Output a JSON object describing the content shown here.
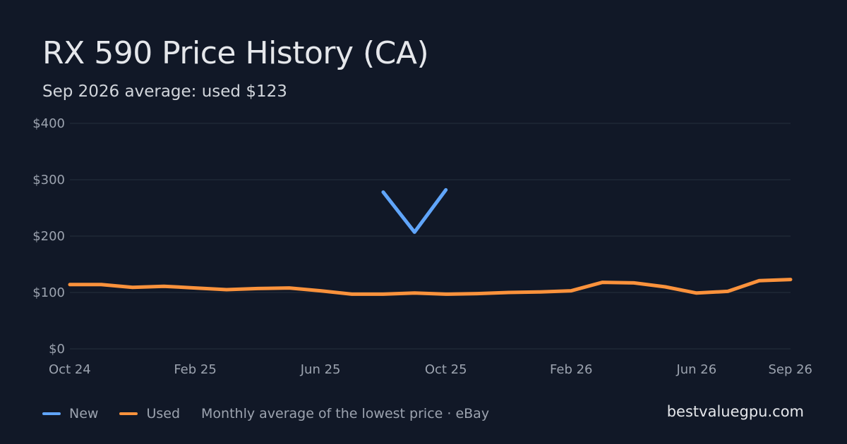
{
  "title": "RX 590 Price History (CA)",
  "subtitle": "Sep 2026 average: used $123",
  "legend": [
    {
      "label": "New",
      "color": "#60a5fa"
    },
    {
      "label": "Used",
      "color": "#fb923c"
    }
  ],
  "source_note": "Monthly average of the lowest price · eBay",
  "brand": "bestvaluegpu.com",
  "chart_data": {
    "type": "line",
    "x": [
      "Oct 24",
      "Nov 24",
      "Dec 24",
      "Jan 25",
      "Feb 25",
      "Mar 25",
      "Apr 25",
      "May 25",
      "Jun 25",
      "Jul 25",
      "Aug 25",
      "Sep 25",
      "Oct 25",
      "Nov 25",
      "Dec 25",
      "Jan 26",
      "Feb 26",
      "Mar 26",
      "Apr 26",
      "May 26",
      "Jun 26",
      "Jul 26",
      "Aug 26",
      "Sep 26"
    ],
    "x_tick_labels": [
      {
        "label": "Oct 24",
        "index": 0
      },
      {
        "label": "Feb 25",
        "index": 4
      },
      {
        "label": "Jun 25",
        "index": 8
      },
      {
        "label": "Oct 25",
        "index": 12
      },
      {
        "label": "Feb 26",
        "index": 16
      },
      {
        "label": "Jun 26",
        "index": 20
      },
      {
        "label": "Sep 26",
        "index": 23
      }
    ],
    "y_ticks": [
      0,
      100,
      200,
      300,
      400
    ],
    "y_tick_labels": [
      "$0",
      "$100",
      "$200",
      "$300",
      "$400"
    ],
    "ylim": [
      0,
      400
    ],
    "grid": true,
    "legend_position": "bottom-left",
    "series": [
      {
        "name": "New",
        "color": "#60a5fa",
        "values": [
          null,
          null,
          null,
          null,
          null,
          null,
          null,
          null,
          null,
          null,
          278,
          207,
          282,
          null,
          null,
          null,
          null,
          null,
          null,
          null,
          null,
          null,
          null,
          null
        ]
      },
      {
        "name": "Used",
        "color": "#fb923c",
        "values": [
          114,
          114,
          109,
          111,
          108,
          105,
          107,
          108,
          103,
          97,
          97,
          99,
          97,
          98,
          100,
          101,
          103,
          118,
          117,
          110,
          99,
          102,
          121,
          123
        ]
      }
    ]
  }
}
